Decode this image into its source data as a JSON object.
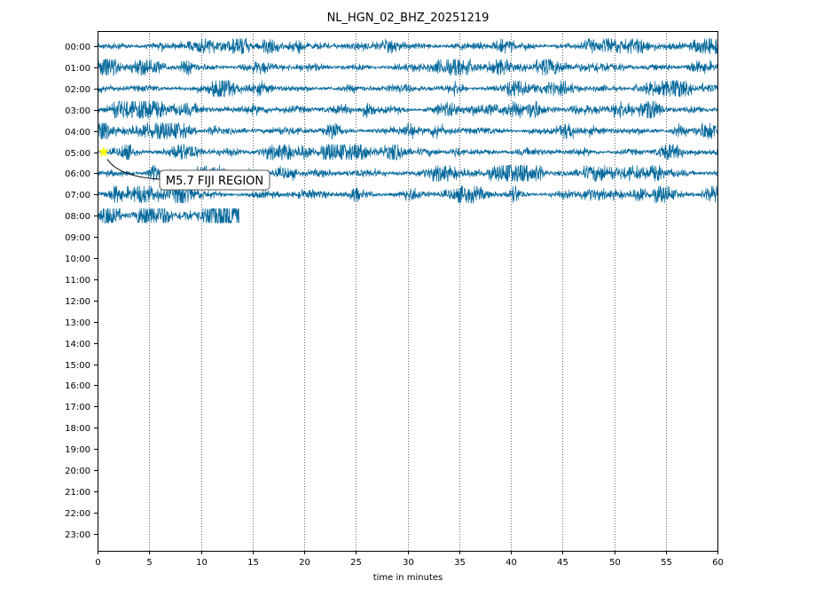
{
  "chart_data": {
    "type": "line",
    "title": "NL_HGN_02_BHZ_20251219",
    "xlabel": "time in minutes",
    "ylabel": "",
    "xlim": [
      0,
      60
    ],
    "x_ticks": [
      "0",
      "5",
      "10",
      "15",
      "20",
      "25",
      "30",
      "35",
      "40",
      "45",
      "50",
      "55",
      "60"
    ],
    "y_ticks": [
      "00:00",
      "01:00",
      "02:00",
      "03:00",
      "04:00",
      "05:00",
      "06:00",
      "07:00",
      "08:00",
      "09:00",
      "10:00",
      "11:00",
      "12:00",
      "13:00",
      "14:00",
      "15:00",
      "16:00",
      "17:00",
      "18:00",
      "19:00",
      "20:00",
      "21:00",
      "22:00",
      "23:00"
    ],
    "grid": "vertical dotted lines",
    "trace_color": "#00669a",
    "series": [
      {
        "row": "00:00",
        "start_min": 0,
        "end_min": 60,
        "amplitude": 0.36
      },
      {
        "row": "01:00",
        "start_min": 0,
        "end_min": 60,
        "amplitude": 0.38
      },
      {
        "row": "02:00",
        "start_min": 0,
        "end_min": 60,
        "amplitude": 0.38
      },
      {
        "row": "03:00",
        "start_min": 0,
        "end_min": 60,
        "amplitude": 0.4
      },
      {
        "row": "04:00",
        "start_min": 0,
        "end_min": 60,
        "amplitude": 0.38
      },
      {
        "row": "05:00",
        "start_min": 0,
        "end_min": 60,
        "amplitude": 0.36
      },
      {
        "row": "06:00",
        "start_min": 0,
        "end_min": 60,
        "amplitude": 0.38
      },
      {
        "row": "07:00",
        "start_min": 0,
        "end_min": 60,
        "amplitude": 0.4
      },
      {
        "row": "08:00",
        "start_min": 0,
        "end_min": 13.7,
        "amplitude": 0.34
      }
    ],
    "annotations": [
      {
        "text": "M5.7 FIJI REGION",
        "row": "05:00",
        "minute": 0.5,
        "marker_color": "#ffff00"
      }
    ]
  }
}
